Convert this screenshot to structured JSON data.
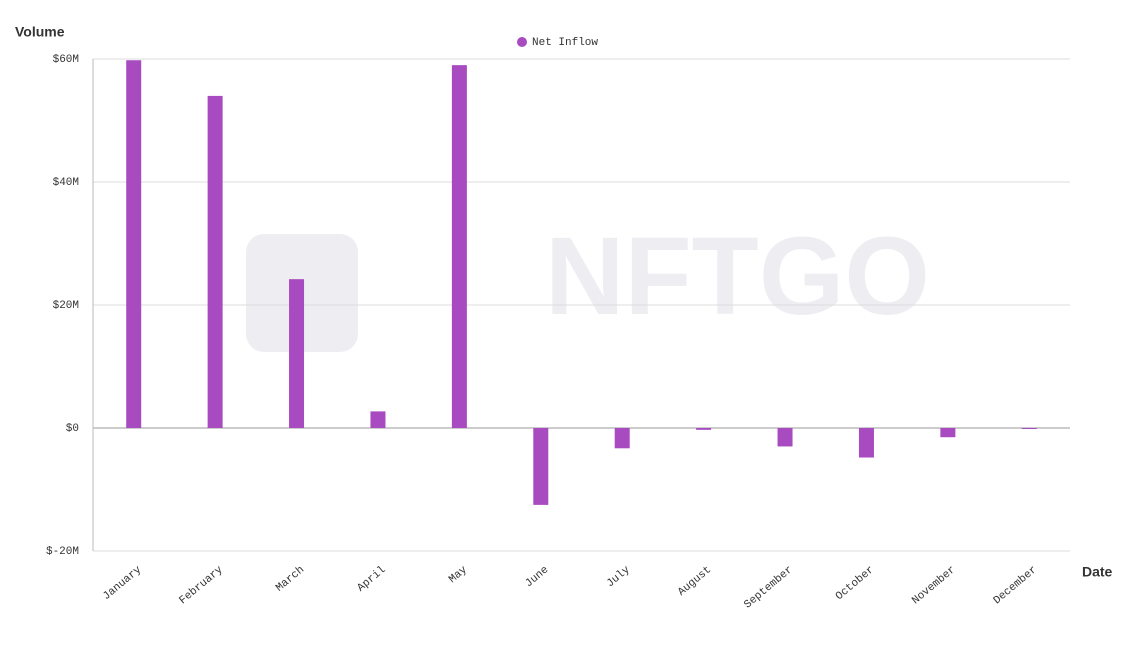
{
  "chart_data": {
    "type": "bar",
    "watermark": "NFTGO",
    "y_label": "Volume",
    "x_label": "Date",
    "categories": [
      "January",
      "February",
      "March",
      "April",
      "May",
      "June",
      "July",
      "August",
      "September",
      "October",
      "November",
      "December"
    ],
    "series": [
      {
        "name": "Net Inflow",
        "color": "#a84ac0",
        "values": [
          59.8,
          54,
          24.2,
          2.7,
          59,
          -12.5,
          -3.3,
          -0.3,
          -3,
          -4.8,
          -1.5,
          -0.1
        ]
      }
    ],
    "ylim": [
      -20,
      60
    ],
    "yticks": [
      {
        "value": -20,
        "label": "$-20M"
      },
      {
        "value": 0,
        "label": "$0"
      },
      {
        "value": 20,
        "label": "$20M"
      },
      {
        "value": 40,
        "label": "$40M"
      },
      {
        "value": 60,
        "label": "$60M"
      }
    ],
    "grid": true
  }
}
